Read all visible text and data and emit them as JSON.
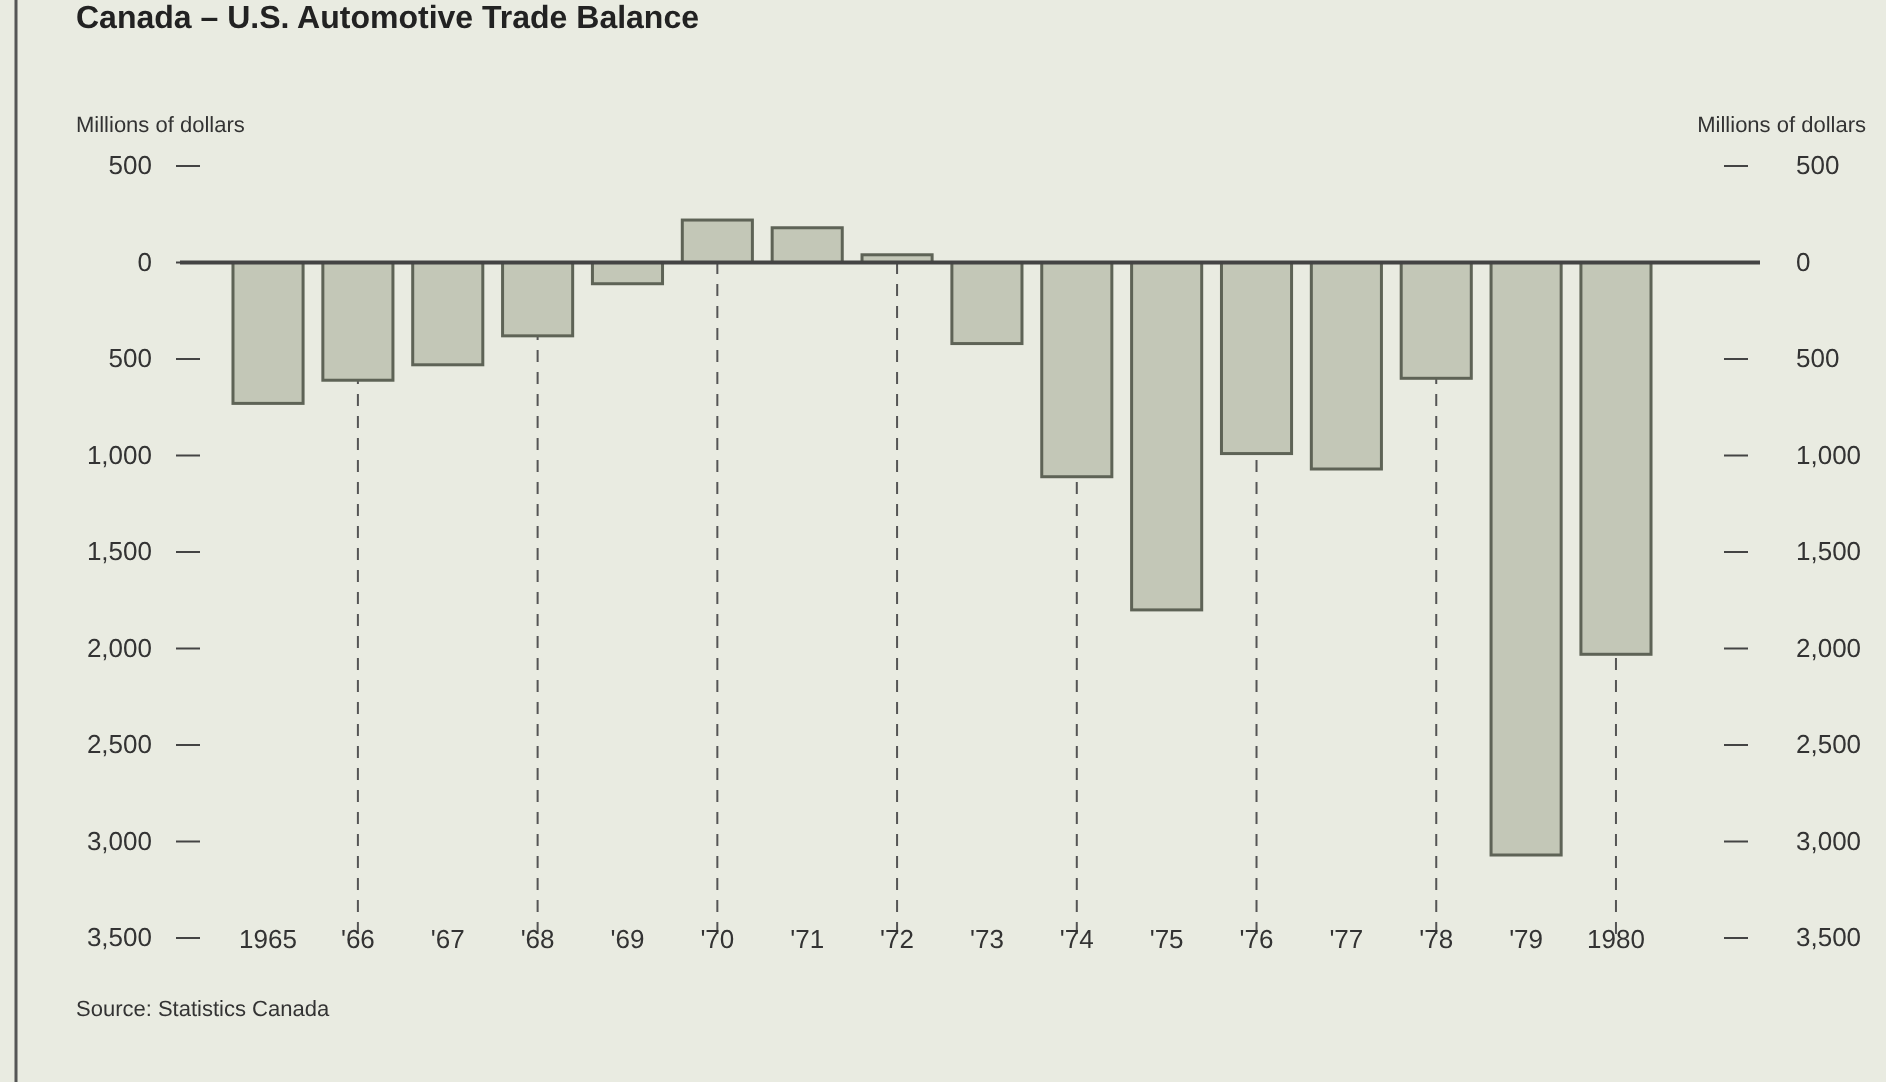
{
  "chart_data": {
    "type": "bar",
    "title": "Canada – U.S. Automotive Trade Balance",
    "ylabel": "Millions of dollars",
    "y2label": "Millions of dollars",
    "categories": [
      "1965",
      "'66",
      "'67",
      "'68",
      "'69",
      "'70",
      "'71",
      "'72",
      "'73",
      "'74",
      "'75",
      "'76",
      "'77",
      "'78",
      "'79",
      "1980"
    ],
    "values": [
      -730,
      -610,
      -530,
      -380,
      -110,
      220,
      180,
      40,
      -420,
      -1110,
      -1800,
      -990,
      -1070,
      -600,
      -3070,
      -2030
    ],
    "color": "#c3c7b7",
    "ylim": [
      -3500,
      500
    ],
    "yticks": [
      500,
      0,
      {
        "value": -500,
        "label": "500"
      },
      {
        "value": -1000,
        "label": "1,000"
      },
      {
        "value": -1500,
        "label": "1,500"
      },
      {
        "value": -2000,
        "label": "2,000"
      },
      {
        "value": -2500,
        "label": "2,500"
      },
      {
        "value": -3000,
        "label": "3,000"
      },
      {
        "value": -3500,
        "label": "3,500"
      }
    ],
    "y2lim": [
      -3500,
      500
    ],
    "y2ticks": [
      500,
      0,
      {
        "value": -500,
        "label": "500"
      },
      {
        "value": -1000,
        "label": "1,000"
      },
      {
        "value": -1500,
        "label": "1,500"
      },
      {
        "value": -2000,
        "label": "2,000"
      },
      {
        "value": -2500,
        "label": "2,500"
      },
      {
        "value": -3000,
        "label": "3,000"
      },
      {
        "value": -3500,
        "label": "3,500"
      }
    ],
    "ref_lines": [
      {
        "axis": "x",
        "value": "'66",
        "line_style": "dashed"
      },
      {
        "axis": "x",
        "value": "'68",
        "line_style": "dashed"
      },
      {
        "axis": "x",
        "value": "'70",
        "line_style": "dashed"
      },
      {
        "axis": "x",
        "value": "'72",
        "line_style": "dashed"
      },
      {
        "axis": "x",
        "value": "'74",
        "line_style": "dashed"
      },
      {
        "axis": "x",
        "value": "'76",
        "line_style": "dashed"
      },
      {
        "axis": "x",
        "value": "'78",
        "line_style": "dashed"
      },
      {
        "axis": "x",
        "value": "1980",
        "line_style": "dashed"
      }
    ],
    "annotations": [
      "Source: Statistics Canada"
    ]
  }
}
